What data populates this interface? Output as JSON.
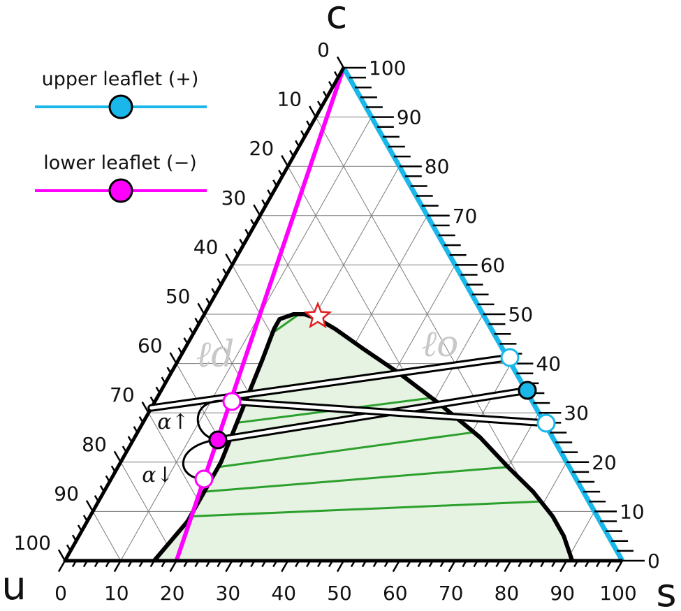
{
  "vertices": {
    "top": "c",
    "left": "u",
    "right": "s"
  },
  "axes": {
    "bottom_ticks": [
      "0",
      "10",
      "20",
      "30",
      "40",
      "50",
      "60",
      "70",
      "80",
      "90",
      "100"
    ],
    "left_ticks": [
      "0",
      "10",
      "20",
      "30",
      "40",
      "50",
      "60",
      "70",
      "80",
      "90",
      "100"
    ],
    "right_ticks": [
      "0",
      "10",
      "20",
      "30",
      "40",
      "50",
      "60",
      "70",
      "80",
      "90",
      "100"
    ]
  },
  "legend": [
    {
      "label": "upper leaflet (+)",
      "color": "#1ab7ea",
      "marker_fill": "#1ab7ea"
    },
    {
      "label": "lower leaflet (−)",
      "color": "#ff00ff",
      "marker_fill": "#ff00ff"
    }
  ],
  "phases": {
    "disordered": "ℓd",
    "ordered": "ℓo"
  },
  "annotations": {
    "alpha_up": "α↑",
    "alpha_down": "α↓"
  },
  "colors": {
    "upper_leaflet": "#1ab7ea",
    "lower_leaflet": "#ff00ff",
    "tie_line": "#2ca02c",
    "two_phase_fill": "#e6f2e2",
    "critical_point": "#e02020"
  }
}
